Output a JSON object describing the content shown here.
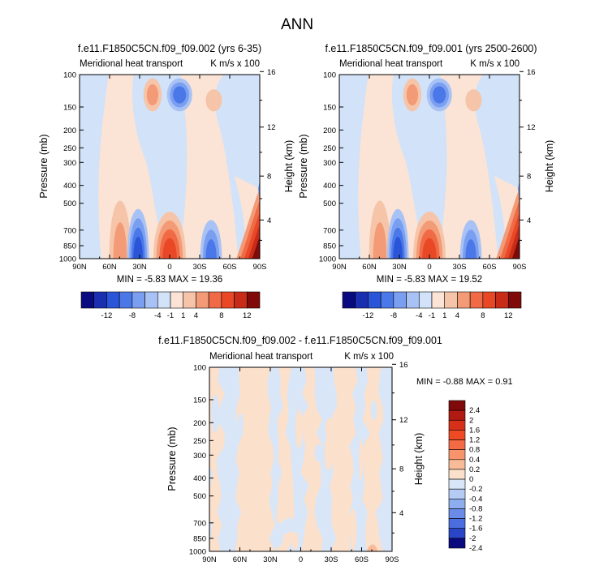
{
  "page_title": "ANN",
  "top_left": {
    "title": "f.e11.F1850C5CN.f09_f09.002 (yrs 6-35)",
    "left_label": "Meridional heat transport",
    "right_label": "K m/s x 100",
    "stats": "MIN =  -5.83  MAX =  19.36"
  },
  "top_right": {
    "title": "f.e11.F1850C5CN.f09_f09.001 (yrs 2500-2600)",
    "left_label": "Meridional heat transport",
    "right_label": "K m/s x 100",
    "stats": "MIN =  -5.83  MAX =  19.52"
  },
  "bottom": {
    "title": "f.e11.F1850C5CN.f09_f09.002 - f.e11.F1850C5CN.f09_f09.001",
    "left_label": "Meridional heat transport",
    "right_label": "K m/s x 100",
    "stats": "MIN =  -0.88  MAX =   0.91"
  },
  "chart_data": [
    {
      "type": "heatmap",
      "title": "f.e11.F1850C5CN.f09_f09.002 (yrs 6-35)",
      "ylabel": "Pressure (mb)",
      "ylabel_right": "Height (km)",
      "x_ticks": [
        "90N",
        "60N",
        "30N",
        "0",
        "30S",
        "60S",
        "90S"
      ],
      "y_ticks": [
        100,
        150,
        200,
        250,
        300,
        400,
        500,
        700,
        850,
        1000
      ],
      "y_right_ticks": [
        16,
        12,
        8,
        4
      ],
      "xlim": [
        90,
        -90
      ],
      "ylim": [
        1000,
        100
      ],
      "min": -5.83,
      "max": 19.36,
      "colorbar_labels": [
        "-12",
        "-8",
        "-4",
        "-1",
        "1",
        "4",
        "8",
        "12"
      ]
    },
    {
      "type": "heatmap",
      "title": "f.e11.F1850C5CN.f09_f09.001 (yrs 2500-2600)",
      "ylabel": "Pressure (mb)",
      "ylabel_right": "Height (km)",
      "x_ticks": [
        "90N",
        "60N",
        "30N",
        "0",
        "30S",
        "60S",
        "90S"
      ],
      "y_ticks": [
        100,
        150,
        200,
        250,
        300,
        400,
        500,
        700,
        850,
        1000
      ],
      "y_right_ticks": [
        16,
        12,
        8,
        4
      ],
      "xlim": [
        90,
        -90
      ],
      "ylim": [
        1000,
        100
      ],
      "min": -5.83,
      "max": 19.52,
      "colorbar_labels": [
        "-12",
        "-8",
        "-4",
        "-1",
        "1",
        "4",
        "8",
        "12"
      ]
    },
    {
      "type": "heatmap",
      "title": "f.e11.F1850C5CN.f09_f09.002 - f.e11.F1850C5CN.f09_f09.001",
      "ylabel": "Pressure (mb)",
      "ylabel_right": "Height (km)",
      "x_ticks": [
        "90N",
        "60N",
        "30N",
        "0",
        "30S",
        "60S",
        "90S"
      ],
      "y_ticks": [
        100,
        150,
        200,
        250,
        300,
        400,
        500,
        700,
        850,
        1000
      ],
      "y_right_ticks": [
        16,
        12,
        8,
        4
      ],
      "xlim": [
        90,
        -90
      ],
      "ylim": [
        1000,
        100
      ],
      "min": -0.88,
      "max": 0.91,
      "colorbar_labels": [
        "2.4",
        "2",
        "1.6",
        "1.2",
        "0.8",
        "0.4",
        "0.2",
        "0",
        "-0.2",
        "-0.4",
        "-0.8",
        "-1.2",
        "-1.6",
        "-2",
        "-2.4"
      ]
    }
  ],
  "colors": {
    "abs_scale": [
      "#0a0a80",
      "#1a2fb0",
      "#2a55d8",
      "#4a78e8",
      "#7b9ff0",
      "#a8c2f5",
      "#d2e2f8",
      "#fbe4d6",
      "#f6c4a8",
      "#f39a76",
      "#f06a46",
      "#e84826",
      "#c62c18",
      "#800a0a"
    ],
    "diff_scale": [
      "#800a0a",
      "#b01a12",
      "#d83018",
      "#f04a24",
      "#f46a44",
      "#f7946c",
      "#f9bb98",
      "#fbe0cc",
      "#d8e6f8",
      "#b4ccf4",
      "#8eadee",
      "#6a8ce8",
      "#4a6ee0",
      "#2a46c8",
      "#0a0a80"
    ]
  }
}
